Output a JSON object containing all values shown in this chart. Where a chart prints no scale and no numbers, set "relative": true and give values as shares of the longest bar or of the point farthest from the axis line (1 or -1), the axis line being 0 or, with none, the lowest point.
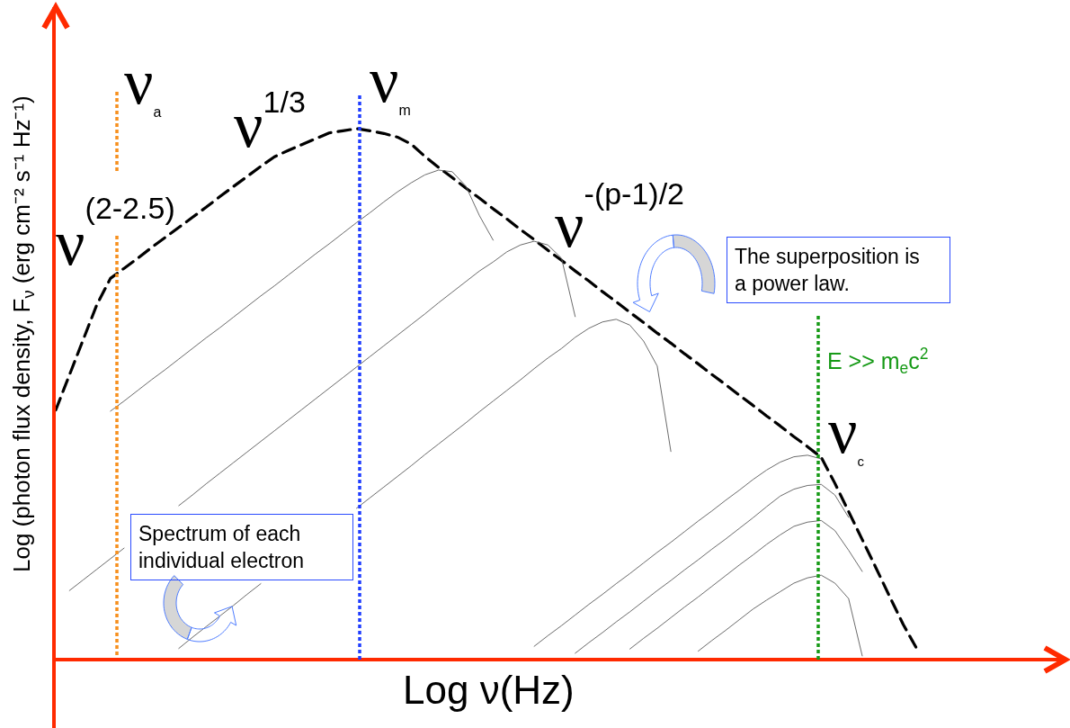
{
  "chart_data": {
    "type": "line",
    "relative": true,
    "line_style": "solid",
    "xlabel": "Log ν(Hz)",
    "ylabel": "Log (photon flux density, F$_{ν}$ (erg cm⁻² s⁻¹ Hz⁻¹)",
    "categories": [
      null,
      null,
      null,
      null,
      null,
      null,
      null,
      null,
      null,
      null,
      null,
      null,
      null,
      null,
      null,
      null,
      null,
      null,
      null,
      null,
      null,
      null,
      null,
      null,
      null,
      null,
      null,
      null,
      null,
      null,
      null,
      null,
      null,
      null,
      null,
      null,
      null,
      null,
      null,
      null,
      null,
      null,
      null,
      null,
      null,
      null,
      null,
      null,
      null,
      null,
      null,
      null,
      null,
      null,
      null,
      null,
      null,
      null,
      null,
      null,
      null,
      null,
      null,
      null,
      null,
      null,
      null,
      null,
      null,
      null,
      null,
      null,
      null,
      null,
      null
    ],
    "series": [
      {
        "color": "#000000",
        "line_style": "dashed",
        "values": [
          0.47,
          0.536,
          0.602,
          0.668,
          0.718,
          0.737,
          0.756,
          0.776,
          0.795,
          0.814,
          0.833,
          0.852,
          0.872,
          0.891,
          0.91,
          0.929,
          0.947,
          0.959,
          0.97,
          0.981,
          0.992,
          0.996,
          1.0,
          0.996,
          0.991,
          0.984,
          0.971,
          0.948,
          0.927,
          0.908,
          0.888,
          0.869,
          0.849,
          0.83,
          0.81,
          0.791,
          0.771,
          0.752,
          0.732,
          0.713,
          0.693,
          0.674,
          0.654,
          0.635,
          0.615,
          0.596,
          0.576,
          0.557,
          0.537,
          0.518,
          0.498,
          0.479,
          0.459,
          0.44,
          0.42,
          0.401,
          0.381,
          0.332,
          0.279,
          0.226,
          0.173,
          0.119,
          0.066,
          0.02,
          null,
          null,
          null,
          null,
          null,
          null,
          null,
          null,
          null,
          null,
          null
        ]
      },
      {
        "color": "#5a5a5a",
        "values": [
          null,
          null,
          null,
          null,
          0.468,
          0.487,
          0.507,
          0.527,
          0.546,
          0.566,
          0.586,
          0.606,
          0.625,
          0.645,
          0.665,
          0.685,
          0.704,
          0.724,
          0.744,
          0.764,
          0.783,
          0.803,
          0.823,
          0.842,
          0.862,
          0.881,
          0.898,
          0.913,
          0.922,
          0.919,
          0.892,
          0.836,
          0.79,
          null,
          null,
          null,
          null,
          null,
          null,
          null,
          null,
          null,
          null,
          null,
          null,
          null,
          null,
          null,
          null,
          null,
          null,
          null,
          null,
          null,
          null,
          null,
          null,
          null,
          null,
          null,
          null,
          null,
          null,
          null,
          null,
          null,
          null,
          null,
          null,
          null,
          null,
          null,
          null,
          null,
          null
        ]
      },
      {
        "color": "#5a5a5a",
        "values": [
          null,
          0.13,
          0.15,
          0.17,
          0.19,
          0.21,
          null,
          null,
          null,
          0.29,
          0.31,
          0.331,
          0.351,
          0.371,
          0.391,
          0.411,
          0.431,
          0.451,
          0.471,
          0.491,
          0.511,
          0.531,
          0.551,
          0.571,
          0.591,
          0.611,
          0.631,
          0.651,
          0.672,
          0.692,
          0.712,
          0.732,
          0.749,
          0.768,
          0.781,
          0.788,
          0.781,
          0.756,
          0.646,
          null,
          null,
          null,
          null,
          null,
          null,
          null,
          null,
          null,
          null,
          null,
          null,
          null,
          null,
          null,
          null,
          null,
          null,
          null,
          null,
          null,
          null,
          null,
          null,
          null,
          null,
          null,
          null,
          null,
          null,
          null,
          null,
          null,
          null,
          null,
          null
        ]
      },
      {
        "color": "#5a5a5a",
        "values": [
          null,
          null,
          null,
          null,
          null,
          null,
          null,
          null,
          null,
          0.021,
          0.042,
          0.062,
          0.082,
          0.102,
          0.123,
          0.143,
          null,
          null,
          null,
          null,
          null,
          null,
          0.285,
          0.305,
          0.325,
          0.345,
          0.365,
          0.386,
          0.406,
          0.426,
          0.446,
          0.467,
          0.487,
          0.507,
          0.527,
          0.548,
          0.568,
          0.586,
          0.607,
          0.624,
          0.636,
          0.641,
          0.63,
          0.6,
          0.553,
          0.392,
          null,
          null,
          null,
          null,
          null,
          null,
          null,
          null,
          null,
          null,
          null,
          null,
          null,
          null,
          null,
          null,
          null,
          null,
          null,
          null,
          null,
          null,
          null,
          null,
          null,
          null,
          null,
          null,
          null
        ]
      },
      {
        "color": "#5a5a5a",
        "values": [
          null,
          null,
          null,
          null,
          null,
          null,
          null,
          null,
          null,
          null,
          null,
          null,
          null,
          null,
          null,
          null,
          null,
          null,
          null,
          null,
          null,
          null,
          null,
          null,
          null,
          null,
          null,
          null,
          null,
          null,
          null,
          null,
          null,
          null,
          null,
          0.025,
          0.045,
          0.064,
          0.084,
          0.104,
          0.123,
          0.143,
          0.162,
          0.182,
          0.202,
          0.221,
          0.241,
          0.261,
          0.28,
          0.3,
          0.319,
          0.339,
          0.357,
          0.372,
          0.382,
          0.385,
          0.378,
          null,
          null,
          null,
          null,
          null,
          null,
          null,
          null,
          null,
          null,
          null,
          null,
          null,
          null,
          null,
          null,
          null,
          null
        ]
      },
      {
        "color": "#5a5a5a",
        "values": [
          null,
          null,
          null,
          null,
          null,
          null,
          null,
          null,
          null,
          null,
          null,
          null,
          null,
          null,
          null,
          null,
          null,
          null,
          null,
          null,
          null,
          null,
          null,
          null,
          null,
          null,
          null,
          null,
          null,
          null,
          null,
          null,
          null,
          null,
          null,
          null,
          null,
          null,
          0.012,
          0.032,
          0.051,
          0.071,
          0.09,
          0.11,
          0.13,
          0.149,
          0.169,
          0.188,
          0.208,
          0.227,
          0.247,
          0.267,
          0.288,
          0.308,
          0.321,
          0.328,
          0.33,
          0.31,
          0.268,
          null,
          null,
          null,
          null,
          null,
          null,
          null,
          null,
          null,
          null,
          null,
          null,
          null,
          null,
          null,
          null
        ]
      },
      {
        "color": "#5a5a5a",
        "values": [
          null,
          null,
          null,
          null,
          null,
          null,
          null,
          null,
          null,
          null,
          null,
          null,
          null,
          null,
          null,
          null,
          null,
          null,
          null,
          null,
          null,
          null,
          null,
          null,
          null,
          null,
          null,
          null,
          null,
          null,
          null,
          null,
          null,
          null,
          null,
          null,
          null,
          null,
          null,
          null,
          null,
          null,
          0.02,
          0.04,
          0.059,
          0.079,
          0.099,
          0.118,
          0.138,
          0.158,
          0.178,
          0.197,
          0.217,
          0.235,
          0.251,
          0.259,
          0.262,
          0.243,
          0.206,
          0.166,
          null,
          null,
          null,
          null,
          null,
          null,
          null,
          null,
          null,
          null,
          null,
          null,
          null,
          null,
          null
        ]
      },
      {
        "color": "#5a5a5a",
        "values": [
          null,
          null,
          null,
          null,
          null,
          null,
          null,
          null,
          null,
          null,
          null,
          null,
          null,
          null,
          null,
          null,
          null,
          null,
          null,
          null,
          null,
          null,
          null,
          null,
          null,
          null,
          null,
          null,
          null,
          null,
          null,
          null,
          null,
          null,
          null,
          null,
          null,
          null,
          null,
          null,
          null,
          null,
          null,
          null,
          null,
          null,
          null,
          0.016,
          0.036,
          0.055,
          0.075,
          0.095,
          0.112,
          0.128,
          0.144,
          0.154,
          0.159,
          0.144,
          0.115,
          0.007,
          null,
          null,
          null,
          null,
          null,
          null,
          null,
          null,
          null,
          null,
          null,
          null,
          null,
          null,
          null
        ]
      }
    ],
    "annotations": [
      "ν$_{a}$",
      "ν$_{m}$",
      "ν$^{1/3}$",
      "ν$^{(2-2.5)}$",
      "ν$^{-(p-1)/2}$",
      "The superposition is a power law.",
      "E >> m$_{e}$c$^{2}$",
      "ν$_{c}$",
      "Spectrum of each individual electron"
    ]
  }
}
